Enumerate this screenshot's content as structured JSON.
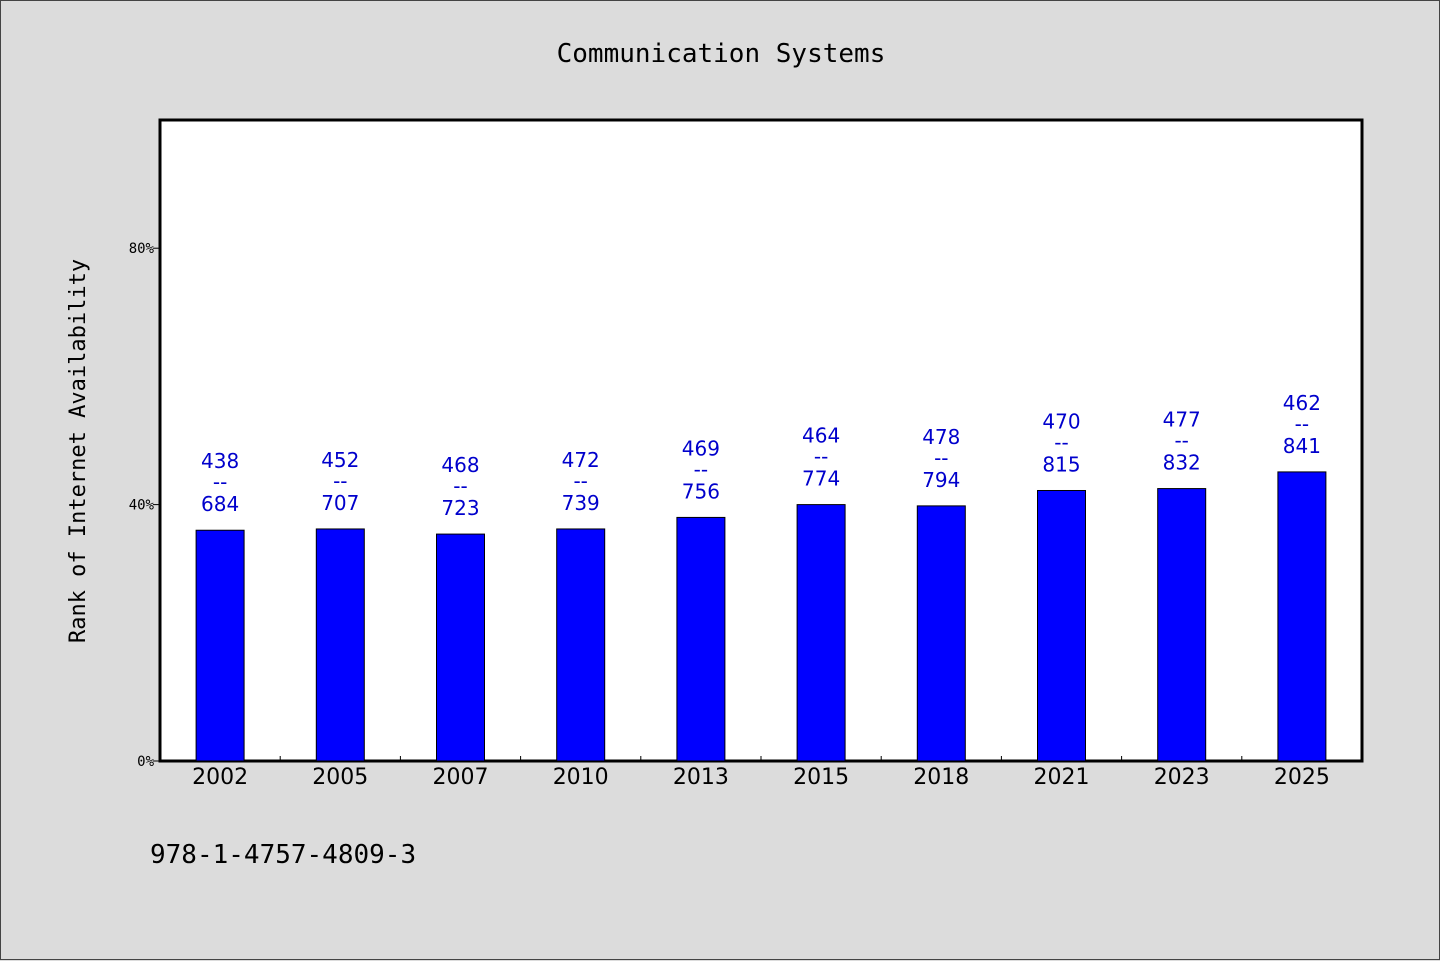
{
  "chart_data": {
    "type": "bar",
    "title": "Communication Systems",
    "ylabel": "Rank of Internet Availability",
    "xlabel": "",
    "categories": [
      "2002",
      "2005",
      "2007",
      "2010",
      "2013",
      "2015",
      "2018",
      "2021",
      "2023",
      "2025"
    ],
    "values": [
      36,
      36.2,
      35.4,
      36.2,
      38,
      40,
      39.8,
      42.2,
      42.5,
      45.1
    ],
    "value_labels": [
      {
        "top": "438",
        "sep": "--",
        "bottom": "684"
      },
      {
        "top": "452",
        "sep": "--",
        "bottom": "707"
      },
      {
        "top": "468",
        "sep": "--",
        "bottom": "723"
      },
      {
        "top": "472",
        "sep": "--",
        "bottom": "739"
      },
      {
        "top": "469",
        "sep": "--",
        "bottom": "756"
      },
      {
        "top": "464",
        "sep": "--",
        "bottom": "774"
      },
      {
        "top": "478",
        "sep": "--",
        "bottom": "794"
      },
      {
        "top": "470",
        "sep": "--",
        "bottom": "815"
      },
      {
        "top": "477",
        "sep": "--",
        "bottom": "832"
      },
      {
        "top": "462",
        "sep": "--",
        "bottom": "841"
      }
    ],
    "ylim": [
      0,
      100
    ],
    "yticks": [
      0,
      40,
      80
    ],
    "ytick_labels": [
      "0%",
      "40%",
      "80%"
    ],
    "grid": false,
    "legend": "none",
    "colors": {
      "bar": "#0000ff",
      "bar_edge": "#000000",
      "data_label": "#0000cc",
      "plot_bg": "#ffffff",
      "page_bg": "#dcdcdc"
    }
  },
  "footer": {
    "isbn": "978-1-4757-4809-3"
  }
}
